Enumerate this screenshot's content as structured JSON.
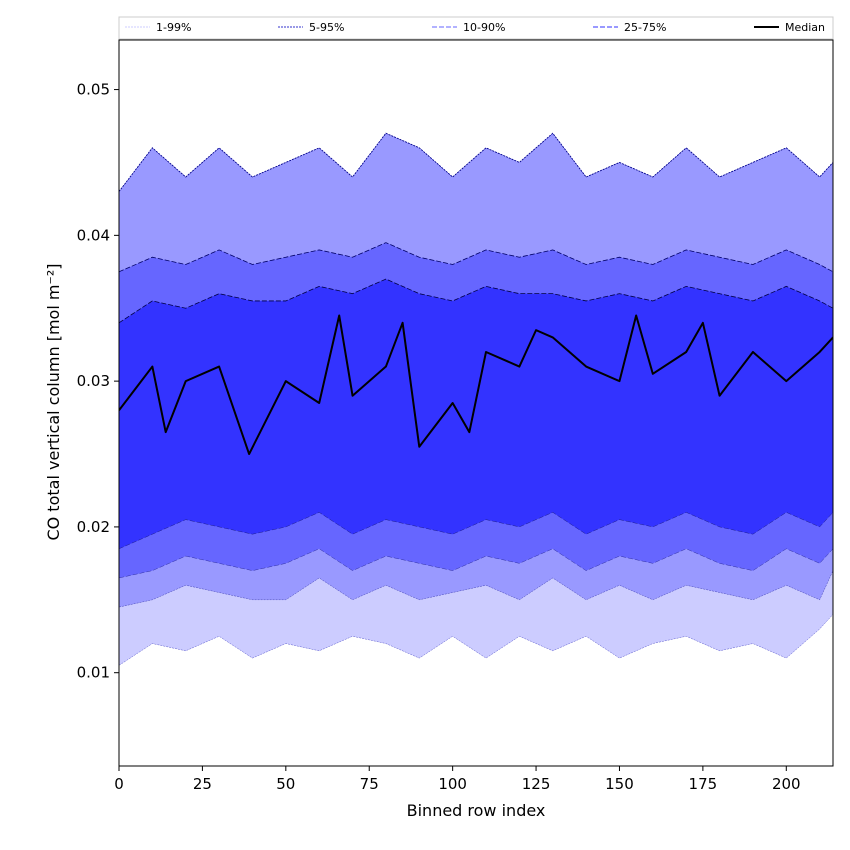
{
  "chart_data": {
    "type": "area",
    "title": "",
    "xlabel": "Binned row index",
    "ylabel": "CO total vertical column [mol m⁻²]",
    "xlim": [
      0,
      214
    ],
    "ylim": [
      0.0036,
      0.0534
    ],
    "x_ticks": [
      0,
      25,
      50,
      75,
      100,
      125,
      150,
      175,
      200
    ],
    "y_ticks": [
      0.01,
      0.02,
      0.03,
      0.04,
      0.05
    ],
    "y_tick_labels": [
      "0.01",
      "0.02",
      "0.03",
      "0.04",
      "0.05"
    ],
    "grid": false,
    "legend_position": "top",
    "legend": [
      {
        "name": "1-99%",
        "style": "dotted",
        "color": "#ccccff"
      },
      {
        "name": "5-95%",
        "style": "dotted",
        "color": "#3333cc"
      },
      {
        "name": "10-90%",
        "style": "dashed",
        "color": "#6666ff"
      },
      {
        "name": "25-75%",
        "style": "dashed",
        "color": "#3333ff"
      },
      {
        "name": "Median",
        "style": "solid",
        "color": "#000000"
      }
    ],
    "x_sampled": [
      0,
      10,
      20,
      30,
      40,
      50,
      60,
      70,
      80,
      90,
      100,
      110,
      120,
      130,
      140,
      150,
      160,
      170,
      180,
      190,
      200,
      210,
      214
    ],
    "bands": [
      {
        "name": "1-99%",
        "fill": "#ccccff",
        "stroke": "#0000aa",
        "lower": [
          0.0105,
          0.012,
          0.0115,
          0.0125,
          0.011,
          0.012,
          0.0115,
          0.0125,
          0.012,
          0.011,
          0.0125,
          0.011,
          0.0125,
          0.0115,
          0.0125,
          0.011,
          0.012,
          0.0125,
          0.0115,
          0.012,
          0.011,
          0.013,
          0.014
        ],
        "upper": [
          0.043,
          0.046,
          0.044,
          0.046,
          0.044,
          0.045,
          0.046,
          0.044,
          0.047,
          0.046,
          0.044,
          0.046,
          0.045,
          0.047,
          0.044,
          0.045,
          0.044,
          0.046,
          0.044,
          0.045,
          0.046,
          0.044,
          0.045
        ]
      },
      {
        "name": "5-95%",
        "fill": "#9999ff",
        "stroke": "#000088",
        "lower": [
          0.0145,
          0.015,
          0.016,
          0.0155,
          0.015,
          0.015,
          0.0165,
          0.015,
          0.016,
          0.015,
          0.0155,
          0.016,
          0.015,
          0.0165,
          0.015,
          0.016,
          0.015,
          0.016,
          0.0155,
          0.015,
          0.016,
          0.015,
          0.017
        ]
      },
      {
        "name": "10-90%",
        "fill": "#6666ff",
        "stroke": "#000066",
        "lower": [
          0.0165,
          0.017,
          0.018,
          0.0175,
          0.017,
          0.0175,
          0.0185,
          0.017,
          0.018,
          0.0175,
          0.017,
          0.018,
          0.0175,
          0.0185,
          0.017,
          0.018,
          0.0175,
          0.0185,
          0.0175,
          0.017,
          0.0185,
          0.0175,
          0.0185
        ],
        "upper": [
          0.0375,
          0.0385,
          0.038,
          0.039,
          0.038,
          0.0385,
          0.039,
          0.0385,
          0.0395,
          0.0385,
          0.038,
          0.039,
          0.0385,
          0.039,
          0.038,
          0.0385,
          0.038,
          0.039,
          0.0385,
          0.038,
          0.039,
          0.038,
          0.0375
        ]
      },
      {
        "name": "25-75%",
        "fill": "#3333ff",
        "stroke": "#000044",
        "lower": [
          0.0185,
          0.0195,
          0.0205,
          0.02,
          0.0195,
          0.02,
          0.021,
          0.0195,
          0.0205,
          0.02,
          0.0195,
          0.0205,
          0.02,
          0.021,
          0.0195,
          0.0205,
          0.02,
          0.021,
          0.02,
          0.0195,
          0.021,
          0.02,
          0.021
        ],
        "upper": [
          0.034,
          0.0355,
          0.035,
          0.036,
          0.0355,
          0.0355,
          0.0365,
          0.036,
          0.037,
          0.036,
          0.0355,
          0.0365,
          0.036,
          0.036,
          0.0355,
          0.036,
          0.0355,
          0.0365,
          0.036,
          0.0355,
          0.0365,
          0.0355,
          0.035
        ]
      }
    ],
    "median": {
      "name": "Median",
      "x": [
        0,
        10,
        14,
        20,
        30,
        39,
        50,
        60,
        66,
        70,
        80,
        85,
        90,
        100,
        105,
        110,
        120,
        125,
        130,
        140,
        150,
        155,
        160,
        170,
        175,
        180,
        190,
        200,
        210,
        214
      ],
      "y": [
        0.028,
        0.031,
        0.0265,
        0.03,
        0.031,
        0.025,
        0.03,
        0.0285,
        0.0345,
        0.029,
        0.031,
        0.034,
        0.0255,
        0.0285,
        0.0265,
        0.032,
        0.031,
        0.0335,
        0.033,
        0.031,
        0.03,
        0.0345,
        0.0305,
        0.032,
        0.034,
        0.029,
        0.032,
        0.03,
        0.032,
        0.033
      ]
    }
  }
}
